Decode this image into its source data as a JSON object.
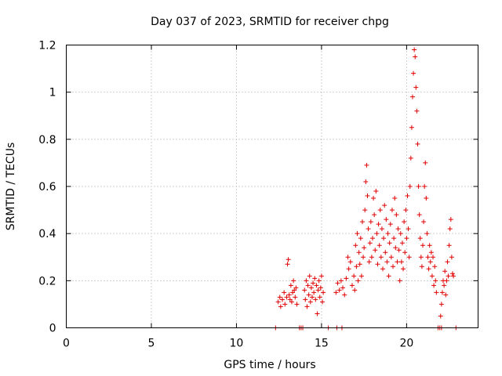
{
  "chart_data": {
    "type": "scatter",
    "title": "Day 037 of 2023, SRMTID for receiver chpg",
    "xlabel": "GPS time / hours",
    "ylabel": "SRMTID / TECUs",
    "xlim": [
      0,
      24.2
    ],
    "ylim": [
      0,
      1.2
    ],
    "grid": true,
    "marker": "plus",
    "marker_color": "#e00000",
    "x_ticks": [
      {
        "value": 0,
        "label": "0"
      },
      {
        "value": 5,
        "label": "5"
      },
      {
        "value": 10,
        "label": "10"
      },
      {
        "value": 15,
        "label": "15"
      },
      {
        "value": 20,
        "label": "20"
      }
    ],
    "y_ticks": [
      {
        "value": 0,
        "label": "0"
      },
      {
        "value": 0.2,
        "label": "0.2"
      },
      {
        "value": 0.4,
        "label": "0.4"
      },
      {
        "value": 0.6,
        "label": "0.6"
      },
      {
        "value": 0.8,
        "label": "0.8"
      },
      {
        "value": 1.0,
        "label": "1"
      },
      {
        "value": 1.2,
        "label": "1.2"
      }
    ],
    "series": [
      {
        "name": "SRMTID",
        "points": [
          [
            12.3,
            0.0
          ],
          [
            13.7,
            0.0
          ],
          [
            13.8,
            0.0
          ],
          [
            13.9,
            0.0
          ],
          [
            15.4,
            0.0
          ],
          [
            15.9,
            0.0
          ],
          [
            16.2,
            0.0
          ],
          [
            21.85,
            0.0
          ],
          [
            21.95,
            0.0
          ],
          [
            22.05,
            0.0
          ],
          [
            22.9,
            0.0
          ],
          [
            12.45,
            0.11
          ],
          [
            12.55,
            0.13
          ],
          [
            12.6,
            0.09
          ],
          [
            12.7,
            0.12
          ],
          [
            12.8,
            0.15
          ],
          [
            12.85,
            0.1
          ],
          [
            12.95,
            0.13
          ],
          [
            13.0,
            0.27
          ],
          [
            13.05,
            0.29
          ],
          [
            13.1,
            0.14
          ],
          [
            13.15,
            0.12
          ],
          [
            13.2,
            0.18
          ],
          [
            13.25,
            0.11
          ],
          [
            13.3,
            0.15
          ],
          [
            13.35,
            0.2
          ],
          [
            13.4,
            0.16
          ],
          [
            13.45,
            0.13
          ],
          [
            13.5,
            0.17
          ],
          [
            13.55,
            0.1
          ],
          [
            14.0,
            0.16
          ],
          [
            14.05,
            0.12
          ],
          [
            14.1,
            0.2
          ],
          [
            14.15,
            0.09
          ],
          [
            14.2,
            0.18
          ],
          [
            14.25,
            0.14
          ],
          [
            14.3,
            0.22
          ],
          [
            14.35,
            0.11
          ],
          [
            14.4,
            0.17
          ],
          [
            14.45,
            0.13
          ],
          [
            14.5,
            0.19
          ],
          [
            14.55,
            0.15
          ],
          [
            14.6,
            0.21
          ],
          [
            14.65,
            0.12
          ],
          [
            14.7,
            0.18
          ],
          [
            14.75,
            0.06
          ],
          [
            14.8,
            0.16
          ],
          [
            14.85,
            0.2
          ],
          [
            14.9,
            0.13
          ],
          [
            14.95,
            0.17
          ],
          [
            15.0,
            0.22
          ],
          [
            15.05,
            0.11
          ],
          [
            15.1,
            0.15
          ],
          [
            15.85,
            0.15
          ],
          [
            15.95,
            0.19
          ],
          [
            16.05,
            0.16
          ],
          [
            16.15,
            0.2
          ],
          [
            16.25,
            0.17
          ],
          [
            16.35,
            0.14
          ],
          [
            16.45,
            0.21
          ],
          [
            16.55,
            0.3
          ],
          [
            16.6,
            0.25
          ],
          [
            16.7,
            0.28
          ],
          [
            16.8,
            0.18
          ],
          [
            16.9,
            0.22
          ],
          [
            16.95,
            0.16
          ],
          [
            17.0,
            0.35
          ],
          [
            17.05,
            0.26
          ],
          [
            17.1,
            0.4
          ],
          [
            17.15,
            0.2
          ],
          [
            17.2,
            0.32
          ],
          [
            17.25,
            0.27
          ],
          [
            17.3,
            0.38
          ],
          [
            17.35,
            0.22
          ],
          [
            17.4,
            0.45
          ],
          [
            17.45,
            0.3
          ],
          [
            17.5,
            0.34
          ],
          [
            17.55,
            0.5
          ],
          [
            17.6,
            0.62
          ],
          [
            17.65,
            0.69
          ],
          [
            17.7,
            0.56
          ],
          [
            17.75,
            0.42
          ],
          [
            17.8,
            0.28
          ],
          [
            17.85,
            0.36
          ],
          [
            17.9,
            0.45
          ],
          [
            17.95,
            0.3
          ],
          [
            18.0,
            0.38
          ],
          [
            18.05,
            0.55
          ],
          [
            18.1,
            0.48
          ],
          [
            18.15,
            0.33
          ],
          [
            18.2,
            0.58
          ],
          [
            18.25,
            0.4
          ],
          [
            18.3,
            0.27
          ],
          [
            18.35,
            0.44
          ],
          [
            18.4,
            0.35
          ],
          [
            18.45,
            0.5
          ],
          [
            18.5,
            0.3
          ],
          [
            18.55,
            0.42
          ],
          [
            18.6,
            0.25
          ],
          [
            18.65,
            0.38
          ],
          [
            18.7,
            0.52
          ],
          [
            18.75,
            0.32
          ],
          [
            18.8,
            0.46
          ],
          [
            18.85,
            0.28
          ],
          [
            18.9,
            0.4
          ],
          [
            18.95,
            0.22
          ],
          [
            19.0,
            0.36
          ],
          [
            19.05,
            0.44
          ],
          [
            19.1,
            0.3
          ],
          [
            19.15,
            0.5
          ],
          [
            19.2,
            0.26
          ],
          [
            19.25,
            0.38
          ],
          [
            19.3,
            0.55
          ],
          [
            19.35,
            0.34
          ],
          [
            19.4,
            0.48
          ],
          [
            19.45,
            0.28
          ],
          [
            19.5,
            0.42
          ],
          [
            19.55,
            0.33
          ],
          [
            19.6,
            0.2
          ],
          [
            19.65,
            0.4
          ],
          [
            19.7,
            0.28
          ],
          [
            19.75,
            0.36
          ],
          [
            19.8,
            0.25
          ],
          [
            19.85,
            0.45
          ],
          [
            19.9,
            0.32
          ],
          [
            19.95,
            0.5
          ],
          [
            20.0,
            0.38
          ],
          [
            20.05,
            0.56
          ],
          [
            20.1,
            0.42
          ],
          [
            20.15,
            0.3
          ],
          [
            20.2,
            0.6
          ],
          [
            20.25,
            0.72
          ],
          [
            20.3,
            0.85
          ],
          [
            20.35,
            0.98
          ],
          [
            20.4,
            1.08
          ],
          [
            20.45,
            1.18
          ],
          [
            20.5,
            1.15
          ],
          [
            20.55,
            1.02
          ],
          [
            20.6,
            0.92
          ],
          [
            20.65,
            0.78
          ],
          [
            20.7,
            0.6
          ],
          [
            20.75,
            0.48
          ],
          [
            20.8,
            0.38
          ],
          [
            20.85,
            0.3
          ],
          [
            20.9,
            0.26
          ],
          [
            20.95,
            0.35
          ],
          [
            21.0,
            0.45
          ],
          [
            21.05,
            0.6
          ],
          [
            21.1,
            0.7
          ],
          [
            21.15,
            0.55
          ],
          [
            21.2,
            0.4
          ],
          [
            21.25,
            0.3
          ],
          [
            21.3,
            0.25
          ],
          [
            21.35,
            0.35
          ],
          [
            21.4,
            0.28
          ],
          [
            21.45,
            0.32
          ],
          [
            21.5,
            0.22
          ],
          [
            21.55,
            0.3
          ],
          [
            21.6,
            0.18
          ],
          [
            21.65,
            0.26
          ],
          [
            21.7,
            0.2
          ],
          [
            21.75,
            0.15
          ],
          [
            22.0,
            0.05
          ],
          [
            22.05,
            0.1
          ],
          [
            22.1,
            0.15
          ],
          [
            22.15,
            0.2
          ],
          [
            22.2,
            0.18
          ],
          [
            22.25,
            0.24
          ],
          [
            22.3,
            0.14
          ],
          [
            22.35,
            0.2
          ],
          [
            22.4,
            0.28
          ],
          [
            22.45,
            0.22
          ],
          [
            22.5,
            0.35
          ],
          [
            22.55,
            0.42
          ],
          [
            22.6,
            0.46
          ],
          [
            22.65,
            0.3
          ],
          [
            22.7,
            0.23
          ],
          [
            22.75,
            0.22
          ]
        ]
      }
    ]
  }
}
